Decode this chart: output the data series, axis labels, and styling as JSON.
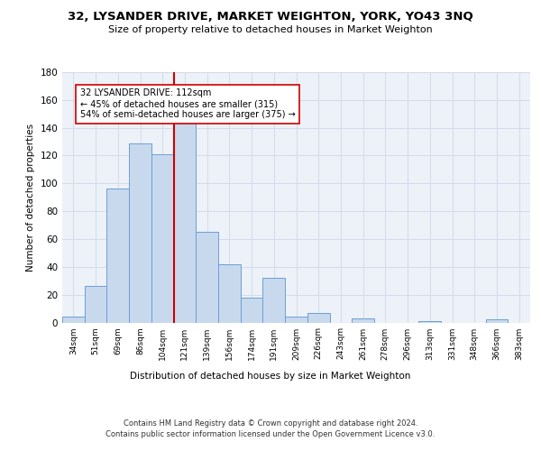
{
  "title": "32, LYSANDER DRIVE, MARKET WEIGHTON, YORK, YO43 3NQ",
  "subtitle": "Size of property relative to detached houses in Market Weighton",
  "xlabel": "Distribution of detached houses by size in Market Weighton",
  "ylabel": "Number of detached properties",
  "bar_color": "#c8d9ee",
  "bar_edge_color": "#6a9fd8",
  "background_color": "#ffffff",
  "grid_color": "#d0d8e8",
  "categories": [
    "34sqm",
    "51sqm",
    "69sqm",
    "86sqm",
    "104sqm",
    "121sqm",
    "139sqm",
    "156sqm",
    "174sqm",
    "191sqm",
    "209sqm",
    "226sqm",
    "243sqm",
    "261sqm",
    "278sqm",
    "296sqm",
    "313sqm",
    "331sqm",
    "348sqm",
    "366sqm",
    "383sqm"
  ],
  "values": [
    4,
    26,
    96,
    129,
    121,
    151,
    65,
    42,
    18,
    32,
    4,
    7,
    0,
    3,
    0,
    0,
    1,
    0,
    0,
    2,
    0
  ],
  "ylim": [
    0,
    180
  ],
  "yticks": [
    0,
    20,
    40,
    60,
    80,
    100,
    120,
    140,
    160,
    180
  ],
  "vline_x": 4.5,
  "annotation_text": "32 LYSANDER DRIVE: 112sqm\n← 45% of detached houses are smaller (315)\n54% of semi-detached houses are larger (375) →",
  "annotation_box_color": "#ffffff",
  "annotation_box_edge_color": "#cc0000",
  "vline_color": "#cc0000",
  "footer_line1": "Contains HM Land Registry data © Crown copyright and database right 2024.",
  "footer_line2": "Contains public sector information licensed under the Open Government Licence v3.0."
}
